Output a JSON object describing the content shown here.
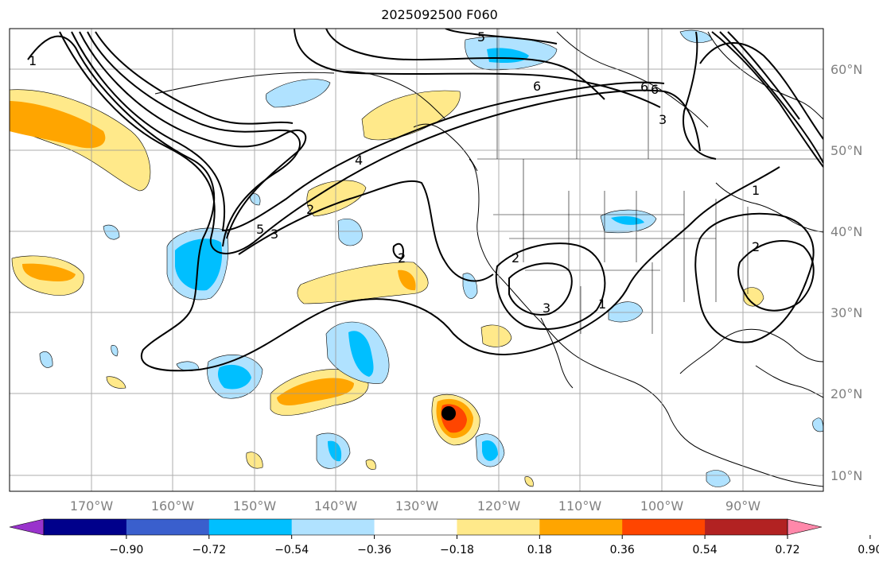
{
  "title": "2025092500 F060",
  "latitude_labels": [
    "60°N",
    "50°N",
    "40°N",
    "30°N",
    "20°N",
    "10°N"
  ],
  "longitude_labels": [
    "170°W",
    "160°W",
    "150°W",
    "140°W",
    "130°W",
    "120°W",
    "110°W",
    "100°W",
    "90°W"
  ],
  "colorbar": {
    "tick_labels": [
      "−0.90",
      "−0.72",
      "−0.54",
      "−0.36",
      "−0.18",
      "0.18",
      "0.36",
      "0.54",
      "0.72",
      "0.90"
    ],
    "colors": [
      "#9933cc",
      "#00008b",
      "#3a5fcd",
      "#00bfff",
      "#b0e2ff",
      "#ffffff",
      "#ffe98a",
      "#ffa500",
      "#ff4500",
      "#b22222",
      "#ff88aa"
    ]
  },
  "contour_labels": [
    "1",
    "5",
    "6",
    "4",
    "2",
    "3",
    "5",
    "3",
    "2",
    "1",
    "6",
    "6",
    "1",
    "2",
    "2",
    "3"
  ],
  "marker": "storm-center"
}
